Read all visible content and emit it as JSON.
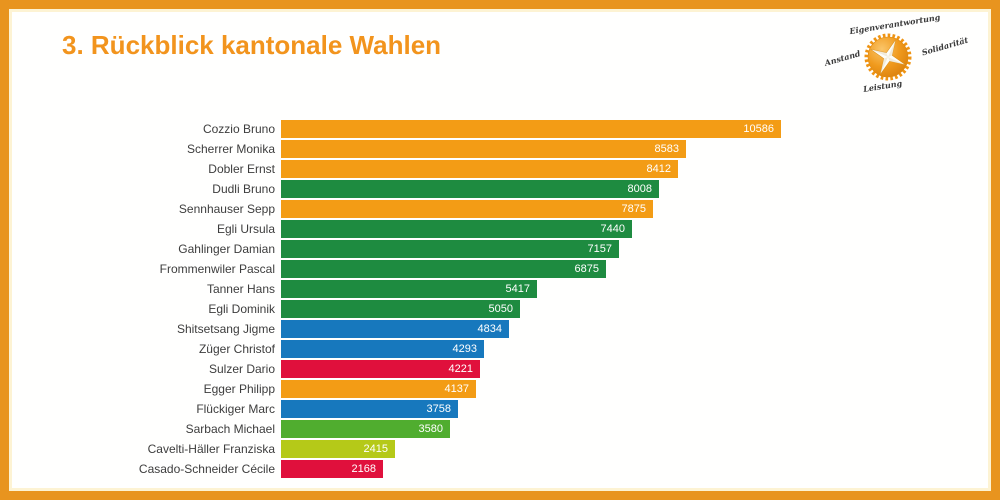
{
  "slide": {
    "title": "3. Rückblick kantonale Wahlen"
  },
  "logo": {
    "name": "orange-compass-party-logo",
    "words": {
      "top": "Eigenverantwortung",
      "right": "Solidarität",
      "left": "Anstand",
      "bottom": "Leistung"
    }
  },
  "style": {
    "border_color": "#e8941f",
    "title_color": "#f2941d",
    "label_color": "#3d3d3d",
    "value_label_color": "#ffffff",
    "background": "#ffffff"
  },
  "chart_data": {
    "type": "bar",
    "orientation": "horizontal",
    "title": "3. Rückblick kantonale Wahlen",
    "gridlines": false,
    "axis_labels_shown": false,
    "value_labels_position": "inside-end",
    "value_axis": {
      "min": 0,
      "max_bar_value": 10586
    },
    "categories": [
      "Cozzio Bruno",
      "Scherrer Monika",
      "Dobler Ernst",
      "Dudli Bruno",
      "Sennhauser Sepp",
      "Egli Ursula",
      "Gahlinger Damian",
      "Frommenwiler Pascal",
      "Tanner Hans",
      "Egli Dominik",
      "Shitsetsang Jigme",
      "Züger Christof",
      "Sulzer Dario",
      "Egger Philipp",
      "Flückiger Marc",
      "Sarbach Michael",
      "Cavelti-Häller Franziska",
      "Casado-Schneider Cécile"
    ],
    "values": [
      10586,
      8583,
      8412,
      8008,
      7875,
      7440,
      7157,
      6875,
      5417,
      5050,
      4834,
      4293,
      4221,
      4137,
      3758,
      3580,
      2415,
      2168
    ],
    "bar_color_keys": [
      "orange",
      "orange",
      "orange",
      "green",
      "orange",
      "green",
      "green",
      "green",
      "green",
      "green",
      "blue",
      "blue",
      "red",
      "orange",
      "blue",
      "bright_green",
      "lime",
      "red"
    ],
    "palette": {
      "orange": "#f39c15",
      "green": "#1e8b40",
      "blue": "#1778bd",
      "red": "#e0103c",
      "bright_green": "#50ad2f",
      "lime": "#b5c918"
    }
  }
}
